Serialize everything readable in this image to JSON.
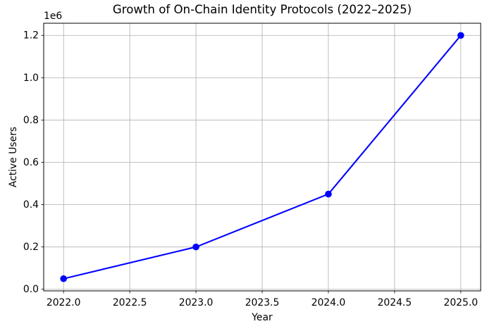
{
  "chart_data": {
    "type": "line",
    "title": "Growth of On-Chain Identity Protocols (2022–2025)",
    "xlabel": "Year",
    "ylabel": "Active Users",
    "x": [
      2022,
      2023,
      2024,
      2025
    ],
    "y": [
      50000,
      200000,
      450000,
      1200000
    ],
    "xlim": [
      2021.85,
      2025.15
    ],
    "ylim": [
      -7500,
      1257500
    ],
    "xticks": {
      "values": [
        2022.0,
        2022.5,
        2023.0,
        2023.5,
        2024.0,
        2024.5,
        2025.0
      ],
      "labels": [
        "2022.0",
        "2022.5",
        "2023.0",
        "2023.5",
        "2024.0",
        "2024.5",
        "2025.0"
      ]
    },
    "yticks": {
      "values": [
        0,
        200000,
        400000,
        600000,
        800000,
        1000000,
        1200000
      ],
      "labels": [
        "0.0",
        "0.2",
        "0.4",
        "0.6",
        "0.8",
        "1.0",
        "1.2"
      ]
    },
    "y_offset_text": "1e6",
    "grid": true,
    "legend": "none",
    "marker": "o",
    "colors": {
      "line": "#0000ff",
      "marker": "#0000ff",
      "grid": "#b0b0b0",
      "spine": "#000000",
      "background": "#ffffff",
      "text": "#000000"
    }
  }
}
